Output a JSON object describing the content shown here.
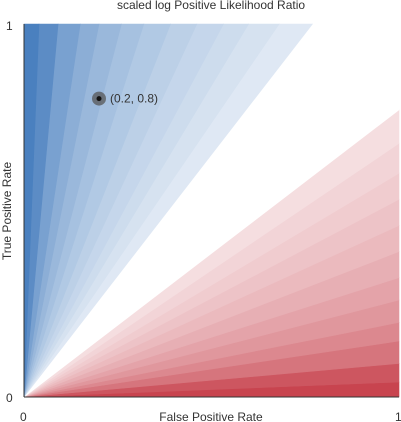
{
  "chart_data": {
    "type": "area",
    "title": "scaled log Positive Likelihood Ratio",
    "xlabel": "False Positive Rate",
    "ylabel": "True Positive Rate",
    "xlim": [
      0,
      1
    ],
    "ylim": [
      0,
      1
    ],
    "x_ticks": [
      "0",
      "1"
    ],
    "y_ticks": [
      "0",
      "1"
    ],
    "grid": false,
    "legend": "none",
    "colors": {
      "positive": "#4a80bf",
      "negative": "#c8444f",
      "neutral": "#ffffff",
      "point": "#333333"
    },
    "contour_slopes": [
      0.04,
      0.09,
      0.15,
      0.2,
      0.26,
      0.32,
      0.39,
      0.46,
      0.53,
      0.6,
      0.68,
      0.77,
      0.87,
      1.0,
      1.15,
      1.3,
      1.47,
      1.67,
      1.88,
      2.17,
      2.56,
      3.13,
      3.85,
      5.0,
      6.67,
      11.0,
      25.0
    ],
    "highlight_point": {
      "x": 0.2,
      "y": 0.8,
      "label": "(0.2, 0.8)"
    }
  }
}
